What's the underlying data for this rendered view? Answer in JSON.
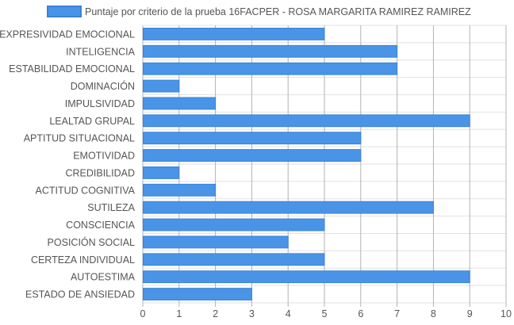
{
  "colors": {
    "bar_fill": "#4a94e8",
    "bar_stroke": "#3a82d8",
    "grid_major": "#b3b3b3",
    "grid_minor": "#e2e2e2",
    "text": "#555555"
  },
  "chart_data": {
    "type": "bar",
    "orientation": "horizontal",
    "legend_position": "top",
    "grid": true,
    "categories": [
      "EXPRESIVIDAD EMOCIONAL",
      "INTELIGENCIA",
      "ESTABILIDAD EMOCIONAL",
      "DOMINACIÓN",
      "IMPULSIVIDAD",
      "LEALTAD GRUPAL",
      "APTITUD SITUACIONAL",
      "EMOTIVIDAD",
      "CREDIBILIDAD",
      "ACTITUD COGNITIVA",
      "SUTILEZA",
      "CONSCIENCIA",
      "POSICIÓN SOCIAL",
      "CERTEZA INDIVIDUAL",
      "AUTOESTIMA",
      "ESTADO DE ANSIEDAD"
    ],
    "series": [
      {
        "name": "Puntaje por criterio de la prueba 16FACPER - ROSA MARGARITA RAMIREZ RAMIREZ",
        "values": [
          5,
          7,
          7,
          1,
          2,
          9,
          6,
          6,
          1,
          2,
          8,
          5,
          4,
          5,
          9,
          3
        ]
      }
    ],
    "xlim": [
      0,
      10
    ],
    "xticks": [
      "0",
      "1",
      "2",
      "3",
      "4",
      "5",
      "6",
      "7",
      "8",
      "9",
      "10"
    ]
  }
}
